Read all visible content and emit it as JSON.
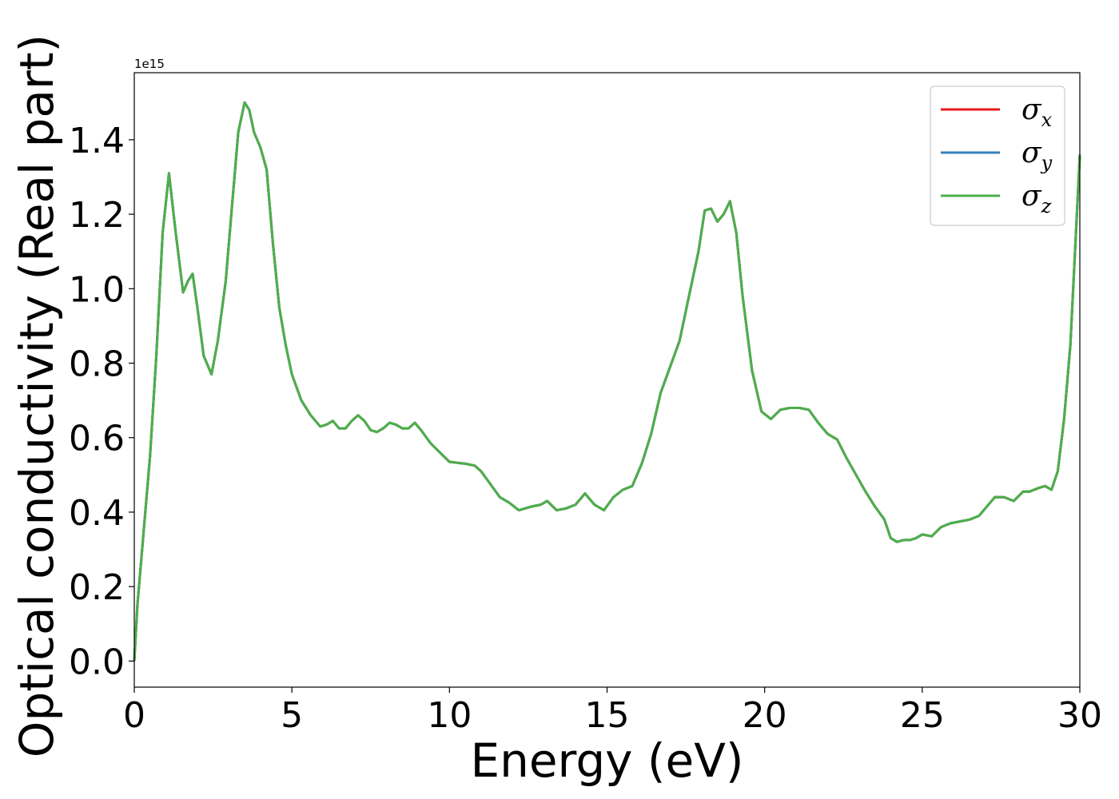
{
  "chart_data": {
    "type": "line",
    "xlabel": "Energy (eV)",
    "ylabel": "Optical conductivity (Real part)",
    "y_offset_label": "1e15",
    "y_scale": 1000000000000000.0,
    "xlim": [
      0,
      30
    ],
    "ylim": [
      -0.07,
      1.58
    ],
    "x_ticks": [
      0,
      5,
      10,
      15,
      20,
      25,
      30
    ],
    "y_ticks": [
      0.0,
      0.2,
      0.4,
      0.6,
      0.8,
      1.0,
      1.2,
      1.4
    ],
    "x_tick_labels": [
      "0",
      "5",
      "10",
      "15",
      "20",
      "25",
      "30"
    ],
    "y_tick_labels": [
      "0.0",
      "0.2",
      "0.4",
      "0.6",
      "0.8",
      "1.0",
      "1.2",
      "1.4"
    ],
    "grid": false,
    "legend_position": "top-right",
    "series": [
      {
        "name": "σ",
        "sub": "x",
        "color": "#e41a1c"
      },
      {
        "name": "σ",
        "sub": "y",
        "color": "#377eb8"
      },
      {
        "name": "σ",
        "sub": "z",
        "color": "#4daf4a"
      }
    ],
    "x": [
      0.0,
      0.1,
      0.3,
      0.5,
      0.7,
      0.9,
      1.1,
      1.3,
      1.55,
      1.7,
      1.85,
      2.0,
      2.2,
      2.45,
      2.65,
      2.9,
      3.1,
      3.3,
      3.5,
      3.65,
      3.8,
      4.0,
      4.2,
      4.4,
      4.6,
      4.8,
      5.0,
      5.3,
      5.6,
      5.9,
      6.1,
      6.3,
      6.5,
      6.7,
      6.9,
      7.1,
      7.3,
      7.5,
      7.7,
      7.9,
      8.1,
      8.3,
      8.5,
      8.7,
      8.9,
      9.1,
      9.4,
      9.7,
      10.0,
      10.5,
      10.8,
      11.0,
      11.3,
      11.6,
      11.9,
      12.2,
      12.6,
      12.9,
      13.1,
      13.4,
      13.7,
      14.0,
      14.3,
      14.6,
      14.9,
      15.2,
      15.5,
      15.8,
      16.1,
      16.4,
      16.7,
      17.0,
      17.3,
      17.6,
      17.9,
      18.1,
      18.3,
      18.5,
      18.7,
      18.9,
      19.1,
      19.3,
      19.6,
      19.9,
      20.2,
      20.5,
      20.8,
      21.1,
      21.4,
      21.7,
      22.0,
      22.3,
      22.6,
      22.9,
      23.2,
      23.5,
      23.8,
      24.0,
      24.2,
      24.4,
      24.6,
      24.8,
      25.0,
      25.3,
      25.6,
      25.9,
      26.2,
      26.5,
      26.8,
      27.0,
      27.3,
      27.6,
      27.9,
      28.2,
      28.4,
      28.7,
      28.9,
      29.1,
      29.3,
      29.5,
      29.7,
      30.0
    ],
    "y": [
      0.0,
      0.15,
      0.35,
      0.55,
      0.82,
      1.15,
      1.31,
      1.16,
      0.99,
      1.02,
      1.04,
      0.95,
      0.82,
      0.77,
      0.86,
      1.02,
      1.22,
      1.42,
      1.5,
      1.48,
      1.42,
      1.38,
      1.32,
      1.12,
      0.95,
      0.85,
      0.77,
      0.7,
      0.66,
      0.63,
      0.635,
      0.645,
      0.625,
      0.625,
      0.645,
      0.66,
      0.645,
      0.62,
      0.615,
      0.625,
      0.64,
      0.635,
      0.625,
      0.625,
      0.64,
      0.62,
      0.585,
      0.56,
      0.535,
      0.53,
      0.525,
      0.51,
      0.475,
      0.44,
      0.425,
      0.405,
      0.415,
      0.42,
      0.43,
      0.405,
      0.41,
      0.42,
      0.45,
      0.42,
      0.405,
      0.44,
      0.46,
      0.47,
      0.53,
      0.61,
      0.72,
      0.79,
      0.86,
      0.98,
      1.1,
      1.21,
      1.215,
      1.18,
      1.2,
      1.235,
      1.15,
      0.98,
      0.78,
      0.67,
      0.65,
      0.675,
      0.68,
      0.68,
      0.675,
      0.64,
      0.61,
      0.595,
      0.545,
      0.5,
      0.455,
      0.415,
      0.38,
      0.33,
      0.32,
      0.325,
      0.325,
      0.33,
      0.34,
      0.335,
      0.36,
      0.37,
      0.375,
      0.38,
      0.39,
      0.41,
      0.44,
      0.44,
      0.43,
      0.455,
      0.455,
      0.465,
      0.47,
      0.46,
      0.51,
      0.65,
      0.85,
      1.36
    ]
  }
}
